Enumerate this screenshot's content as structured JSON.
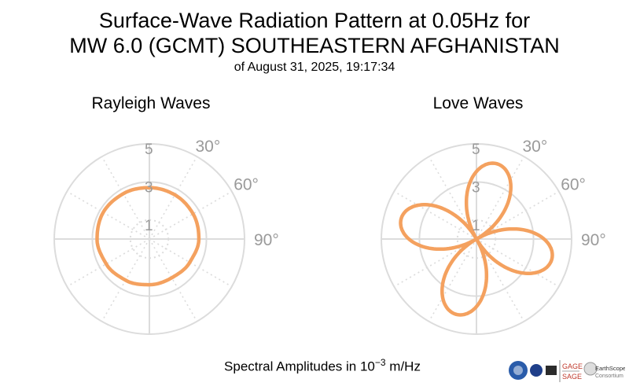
{
  "title_line1": "Surface-Wave Radiation Pattern at 0.05Hz for",
  "title_line2": "MW 6.0 (GCMT) SOUTHEASTERN AFGHANISTAN",
  "title_line3": "of August 31, 2025, 19:17:34",
  "footer": {
    "prefix": "Spectral Amplitudes in ",
    "base": "10",
    "exponent": "−3",
    "suffix": " m/Hz"
  },
  "logos": {
    "gage": "GAGE",
    "sage": "SAGE",
    "earthscope": "EarthScope",
    "consortium": "Consortium"
  },
  "colors": {
    "pattern": "#f4a15f",
    "grid": "#dcdcdc",
    "ticks": "#9a9a9a"
  },
  "chart_data": [
    {
      "type": "polar",
      "title": "Rayleigh Waves",
      "radial_ticks": [
        "1",
        "3",
        "5"
      ],
      "radial_tick_values": [
        1,
        3,
        5
      ],
      "radial_max": 5,
      "angle_ticks": [
        "30°",
        "60°",
        "90°"
      ],
      "angle_tick_values_deg": [
        30,
        60,
        90
      ],
      "theta_deg": [
        0,
        30,
        60,
        90,
        120,
        150,
        180,
        210,
        240,
        270,
        300,
        330
      ],
      "r": [
        2.7,
        2.68,
        2.65,
        2.6,
        2.45,
        2.35,
        2.4,
        2.5,
        2.62,
        2.75,
        2.8,
        2.75
      ]
    },
    {
      "type": "polar",
      "title": "Love Waves",
      "radial_ticks": [
        "1",
        "3",
        "5"
      ],
      "radial_tick_values": [
        1,
        3,
        5
      ],
      "radial_max": 5,
      "angle_ticks": [
        "30°",
        "60°",
        "90°"
      ],
      "angle_tick_values_deg": [
        30,
        60,
        90
      ],
      "four_lobe_pattern": {
        "amplitude": 4.1,
        "lobe_peaks_deg": [
          15,
          105,
          195,
          285
        ]
      }
    }
  ]
}
